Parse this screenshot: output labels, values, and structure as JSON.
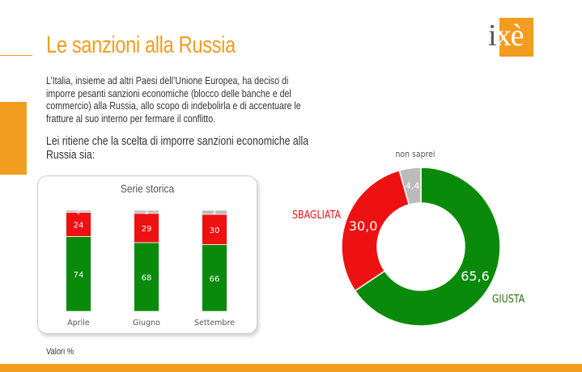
{
  "title": "Le sanzioni alla Russia",
  "intro": "L’Italia, insieme ad altri Paesi dell’Unione Europea, ha deciso di imporre pesanti sanzioni economiche (blocco delle banche e del commercio) alla Russia, allo scopo di indebolirla e di accentuare le fratture al suo interno per fermare il conflitto.",
  "question": "Lei ritiene che la scelta di imporre sanzioni economiche alla Russia sia:",
  "footnote": "Valori %",
  "logo_text": "ixè",
  "colors": {
    "accent": "#f29d1f",
    "green": "#0a8a0a",
    "red": "#ee1111",
    "gray": "#bbbbbb"
  },
  "chart_data": [
    {
      "type": "bar",
      "stacked": true,
      "title": "Serie storica",
      "categories": [
        "Aprile",
        "Giugno",
        "Settembre"
      ],
      "series": [
        {
          "values": [
            74,
            68,
            66
          ]
        },
        {
          "values": [
            24,
            29,
            30
          ]
        },
        {
          "values": [
            2,
            3,
            4
          ]
        }
      ]
    },
    {
      "type": "pie",
      "donut": true,
      "slices": [
        {
          "label": "GIUSTA",
          "value": 65.6,
          "value_label": "65,6"
        },
        {
          "label": "SBAGLIATA",
          "value": 30.0,
          "value_label": "30,0"
        },
        {
          "label": "non saprei",
          "value": 4.4,
          "value_label": "4,4"
        }
      ]
    }
  ]
}
